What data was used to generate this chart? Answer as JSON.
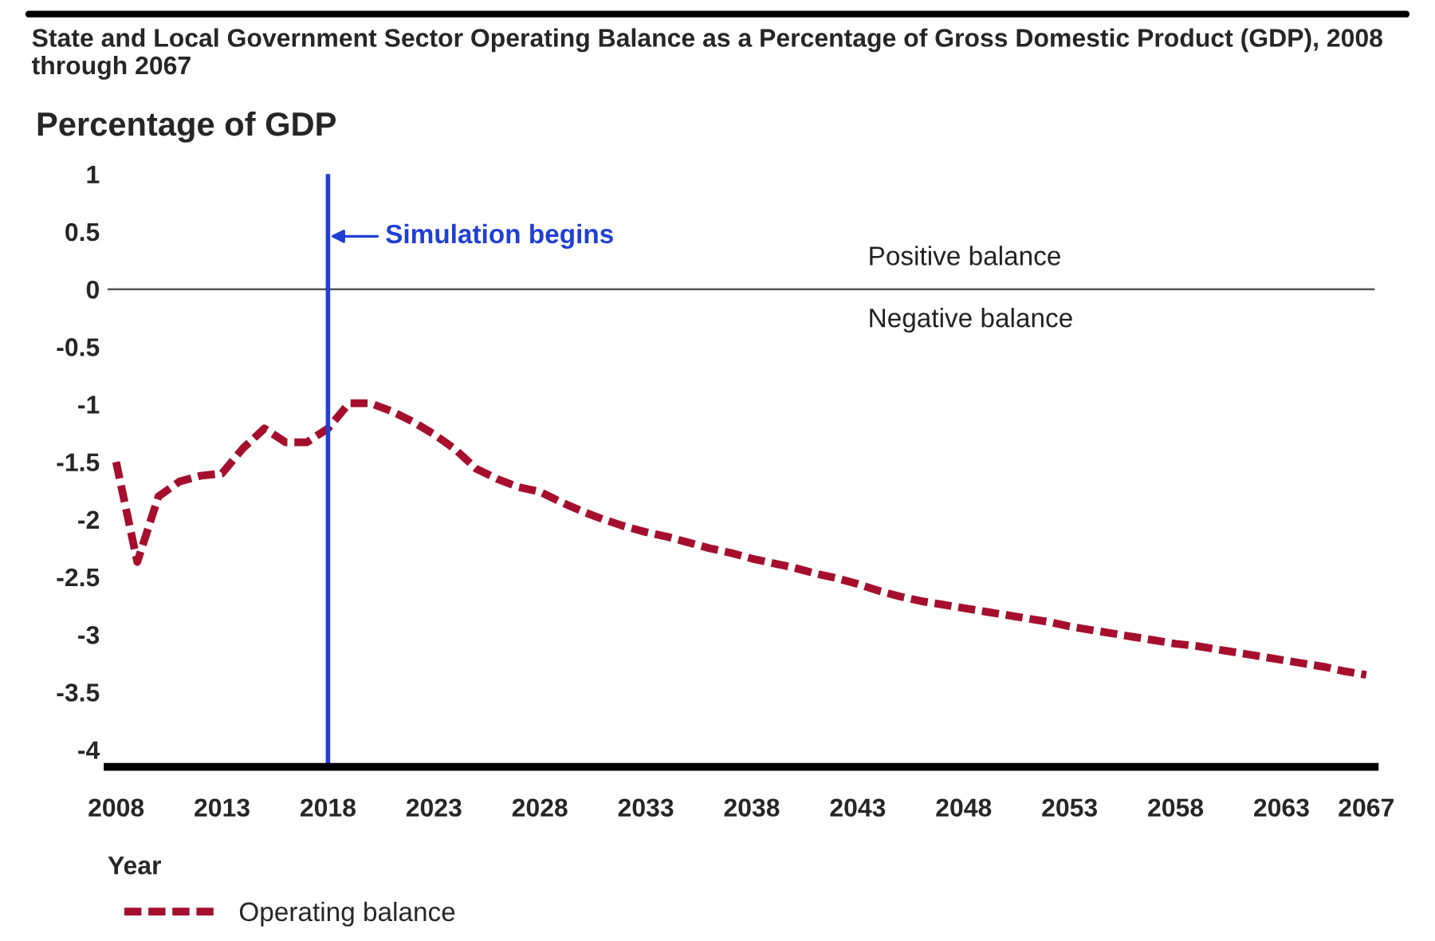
{
  "chart_data": {
    "type": "line",
    "title": "State and Local Government Sector Operating Balance as a Percentage of Gross Domestic Product (GDP), 2008 through 2067",
    "ylabel": "Percentage of GDP",
    "xlabel": "Year",
    "x": [
      2008,
      2009,
      2010,
      2011,
      2012,
      2013,
      2014,
      2015,
      2016,
      2017,
      2018,
      2019,
      2020,
      2021,
      2022,
      2023,
      2024,
      2025,
      2026,
      2027,
      2028,
      2029,
      2030,
      2031,
      2032,
      2033,
      2034,
      2035,
      2036,
      2037,
      2038,
      2039,
      2040,
      2041,
      2042,
      2043,
      2044,
      2045,
      2046,
      2047,
      2048,
      2049,
      2050,
      2051,
      2052,
      2053,
      2054,
      2055,
      2056,
      2057,
      2058,
      2059,
      2060,
      2061,
      2062,
      2063,
      2064,
      2065,
      2066,
      2067
    ],
    "series": [
      {
        "name": "Operating balance",
        "color": "#a50f2d",
        "values": [
          -1.5,
          -2.37,
          -1.8,
          -1.67,
          -1.62,
          -1.6,
          -1.38,
          -1.21,
          -1.33,
          -1.33,
          -1.21,
          -0.99,
          -0.99,
          -1.06,
          -1.15,
          -1.26,
          -1.39,
          -1.56,
          -1.65,
          -1.72,
          -1.76,
          -1.85,
          -1.93,
          -2.0,
          -2.06,
          -2.11,
          -2.15,
          -2.2,
          -2.25,
          -2.29,
          -2.34,
          -2.38,
          -2.42,
          -2.47,
          -2.51,
          -2.56,
          -2.62,
          -2.67,
          -2.71,
          -2.74,
          -2.77,
          -2.8,
          -2.83,
          -2.86,
          -2.89,
          -2.93,
          -2.96,
          -2.99,
          -3.02,
          -3.05,
          -3.08,
          -3.1,
          -3.13,
          -3.16,
          -3.19,
          -3.22,
          -3.25,
          -3.28,
          -3.32,
          -3.35
        ]
      }
    ],
    "xlim": [
      2007.6,
      2067.4
    ],
    "ylim": [
      -4.15,
      1
    ],
    "xticks": [
      2008,
      2013,
      2018,
      2023,
      2028,
      2033,
      2038,
      2043,
      2048,
      2053,
      2058,
      2063,
      2067
    ],
    "yticks": [
      1,
      0.5,
      0,
      -0.5,
      -1,
      -1.5,
      -2,
      -2.5,
      -3,
      -3.5,
      -4
    ],
    "ref_lines": [
      {
        "axis": "x",
        "value": 2018,
        "label": "Simulation begins",
        "color": "#1f3fd6"
      },
      {
        "axis": "y",
        "value": 0,
        "color": "#555555"
      }
    ],
    "annotations": [
      "Positive balance",
      "Negative balance"
    ],
    "line_style": "dashed",
    "marker": "none",
    "grid": false,
    "legend": "bottom"
  }
}
